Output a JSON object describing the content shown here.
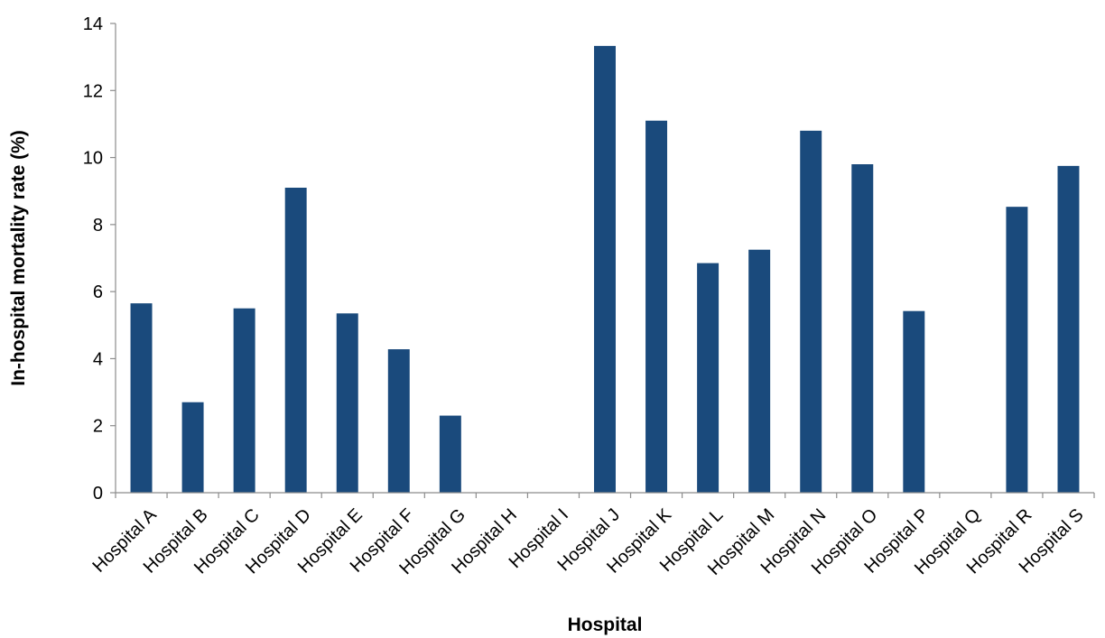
{
  "chart_data": {
    "type": "bar",
    "title": "",
    "xlabel": "Hospital",
    "ylabel": "In-hospital mortality rate (%)",
    "ylim": [
      0,
      14
    ],
    "yticks": [
      "0",
      "2",
      "4",
      "6",
      "8",
      "10",
      "12",
      "14"
    ],
    "grid": false,
    "legend": "none",
    "categories": [
      "Hospital A",
      "Hospital B",
      "Hospital C",
      "Hospital D",
      "Hospital E",
      "Hospital F",
      "Hospital G",
      "Hospital H",
      "Hospital I",
      "Hospital J",
      "Hospital K",
      "Hospital L",
      "Hospital M",
      "Hospital N",
      "Hospital O",
      "Hospital P",
      "Hospital Q",
      "Hospital R",
      "Hospital S"
    ],
    "values": [
      5.65,
      2.7,
      5.5,
      9.1,
      5.35,
      4.28,
      2.3,
      0,
      0,
      13.33,
      11.1,
      6.85,
      7.25,
      10.8,
      9.8,
      5.42,
      0,
      8.53,
      9.75
    ],
    "bar_color": "#1a4a7c"
  }
}
